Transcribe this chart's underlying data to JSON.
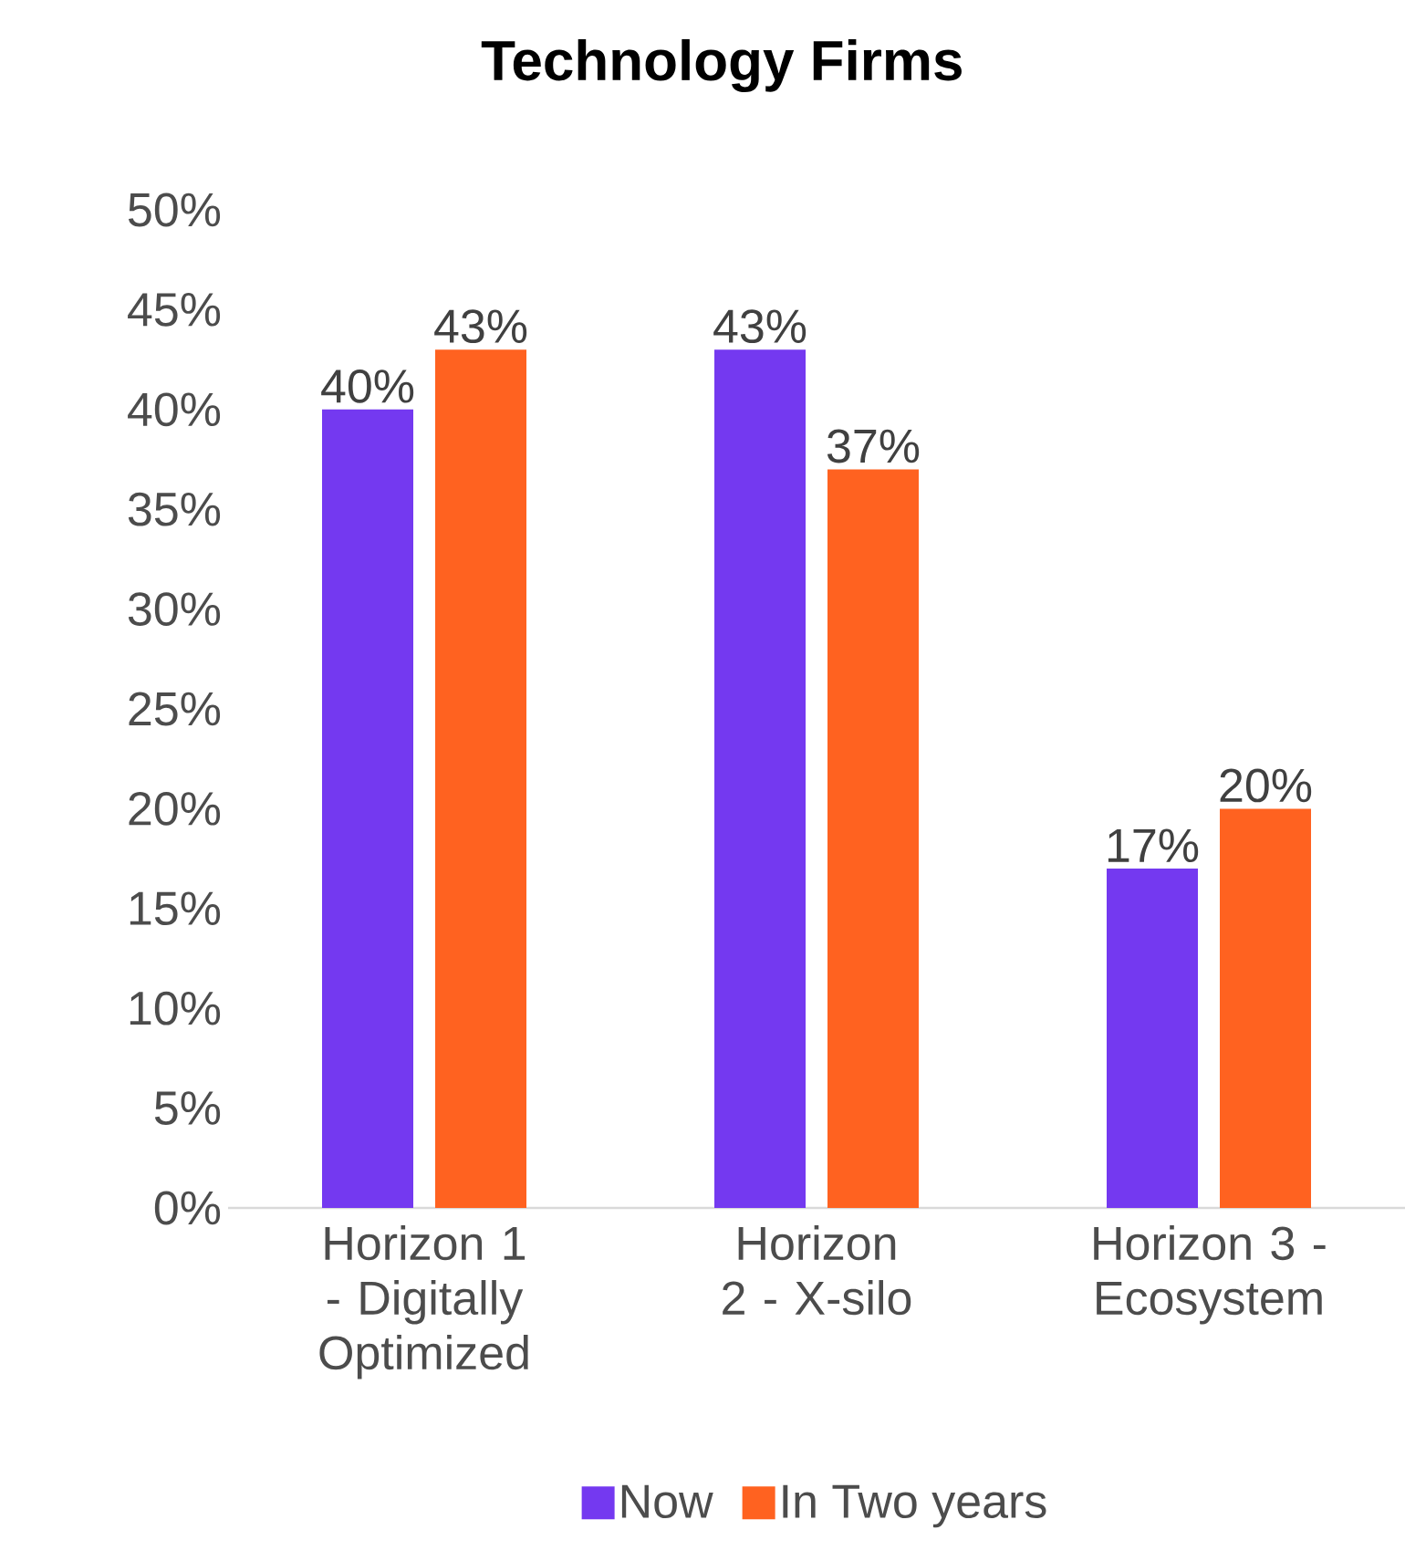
{
  "chart_data": {
    "type": "bar",
    "title": "Technology Firms",
    "categories": [
      "Horizon 1 - Digitally Optimized",
      "Horizon 2 - X-silo",
      "Horizon 3 - Ecosystem"
    ],
    "series": [
      {
        "name": "Now",
        "color": "#7439f0",
        "values": [
          40,
          43,
          17
        ],
        "value_labels": [
          "40%",
          "43%",
          "17%"
        ]
      },
      {
        "name": "In Two years",
        "color": "#ff6220",
        "values": [
          43,
          37,
          20
        ],
        "value_labels": [
          "43%",
          "37%",
          "20%"
        ]
      }
    ],
    "ylim": [
      0,
      50
    ],
    "yticks": [
      {
        "value": 0,
        "label": "0%"
      },
      {
        "value": 5,
        "label": "5%"
      },
      {
        "value": 10,
        "label": "10%"
      },
      {
        "value": 15,
        "label": "15%"
      },
      {
        "value": 20,
        "label": "20%"
      },
      {
        "value": 25,
        "label": "25%"
      },
      {
        "value": 30,
        "label": "30%"
      },
      {
        "value": 35,
        "label": "35%"
      },
      {
        "value": 40,
        "label": "40%"
      },
      {
        "value": 45,
        "label": "45%"
      },
      {
        "value": 50,
        "label": "50%"
      }
    ],
    "grid": false,
    "legend": "bottom"
  }
}
